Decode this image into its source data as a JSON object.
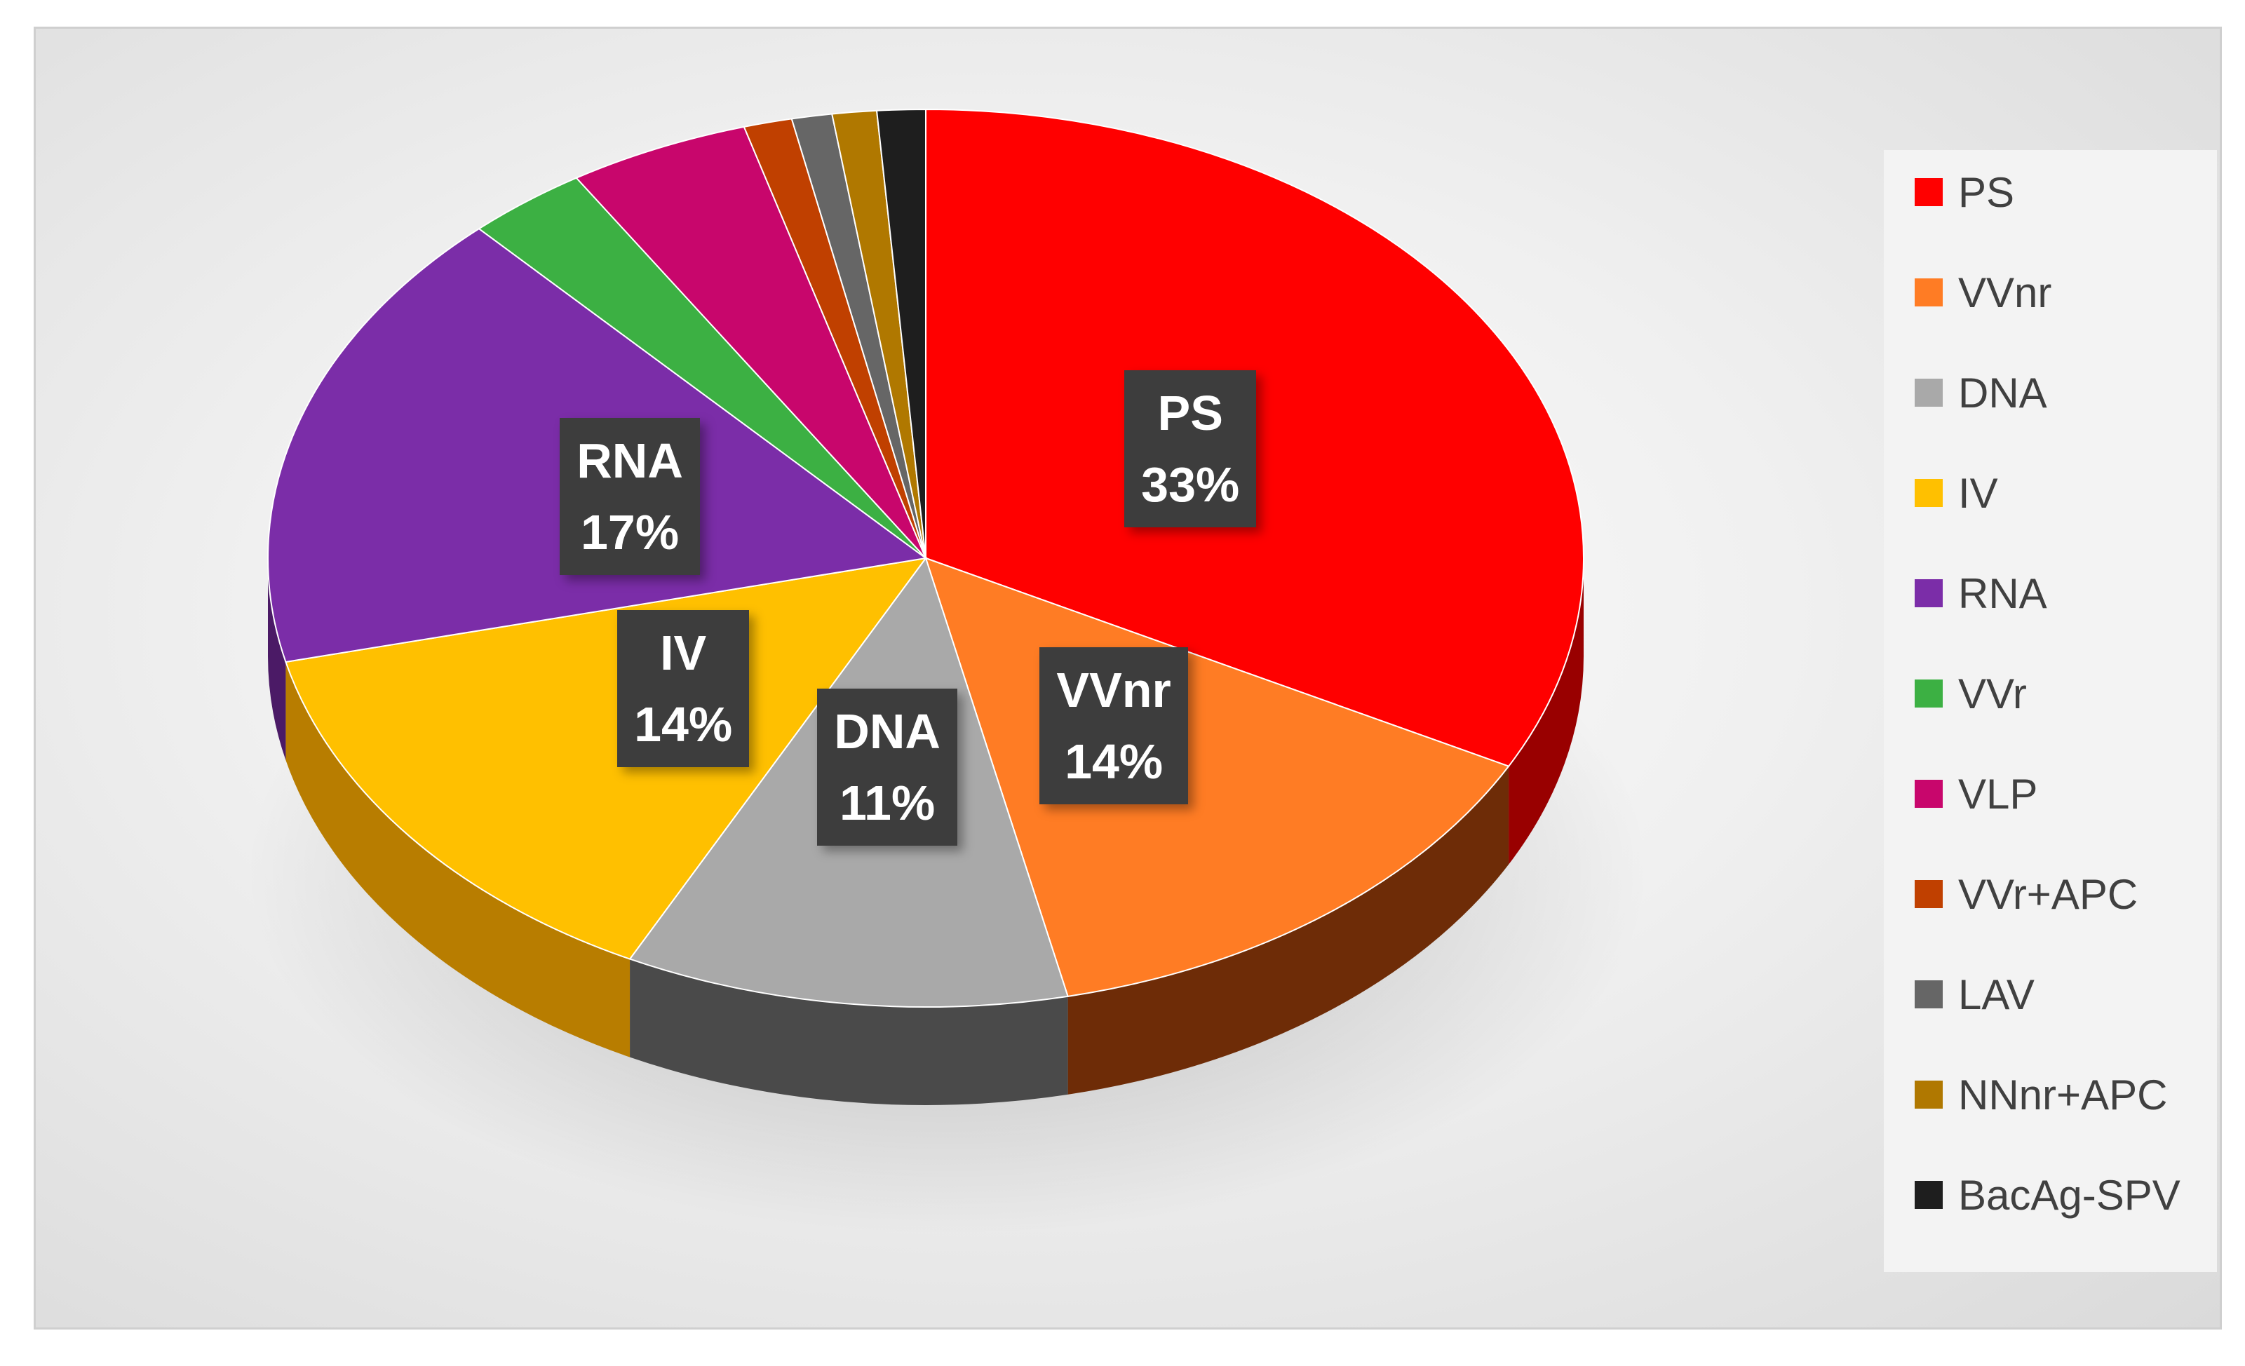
{
  "chart_data": {
    "type": "pie",
    "title": "",
    "slices": [
      {
        "name": "PS",
        "value": 33,
        "color": "#ff0000",
        "side_color": "#990000",
        "label": "PS",
        "pct": "33%"
      },
      {
        "name": "VVnr",
        "value": 14,
        "color": "#ff7c24",
        "side_color": "#6e2c07",
        "label": "VVnr",
        "pct": "14%"
      },
      {
        "name": "DNA",
        "value": 11,
        "color": "#a9a9a9",
        "side_color": "#4a4a4a",
        "label": "DNA",
        "pct": "11%"
      },
      {
        "name": "IV",
        "value": 14,
        "color": "#ffc000",
        "side_color": "#b87d00",
        "label": "IV",
        "pct": "14%"
      },
      {
        "name": "RNA",
        "value": 17,
        "color": "#7b2da8",
        "side_color": "#4b1a66",
        "label": "RNA",
        "pct": "17%"
      },
      {
        "name": "VVr",
        "value": 3,
        "color": "#3cb043",
        "side_color": "#236b27",
        "label": "",
        "pct": ""
      },
      {
        "name": "VLP",
        "value": 4.5,
        "color": "#c8066c",
        "side_color": "#7a0442",
        "label": "",
        "pct": ""
      },
      {
        "name": "VVr+APC",
        "value": 1.2,
        "color": "#c04000",
        "side_color": "#702600",
        "label": "",
        "pct": ""
      },
      {
        "name": "LAV",
        "value": 1,
        "color": "#666666",
        "side_color": "#3a3a3a",
        "label": "",
        "pct": ""
      },
      {
        "name": "NNnr+APC",
        "value": 1.1,
        "color": "#b07800",
        "side_color": "#6a4800",
        "label": "",
        "pct": ""
      },
      {
        "name": "BacAg-SPV",
        "value": 1.2,
        "color": "#1e1e1e",
        "side_color": "#0a0a0a",
        "label": "",
        "pct": ""
      }
    ],
    "legend_position": "right"
  }
}
